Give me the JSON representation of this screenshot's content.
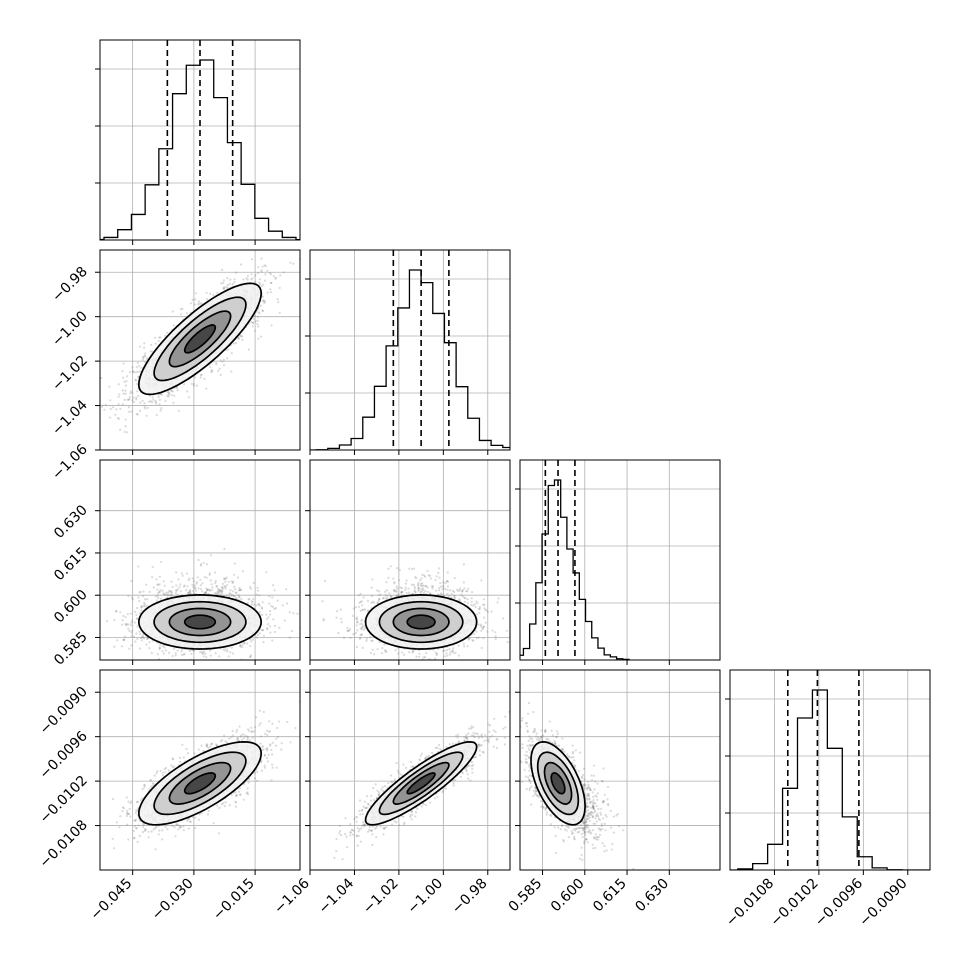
{
  "chart_data": {
    "type": "corner",
    "title": "",
    "grid": true,
    "parameters": [
      {
        "name": "p1",
        "label": "",
        "mean": -0.0285,
        "std": 0.0075,
        "range": [
          -0.053,
          -0.004
        ],
        "ticks": [
          -0.045,
          -0.03,
          -0.015
        ],
        "tick_labels": [
          "−0.045",
          "−0.030",
          "−0.015"
        ],
        "quantiles": [
          -0.0365,
          -0.0285,
          -0.0205
        ]
      },
      {
        "name": "p2",
        "label": "",
        "mean": -1.01,
        "std": 0.0125,
        "range": [
          -1.06,
          -0.97
        ],
        "ticks": [
          -1.06,
          -1.04,
          -1.02,
          -1.0,
          -0.98
        ],
        "tick_labels": [
          "−1.06",
          "−1.04",
          "−1.02",
          "−1.00",
          "−0.98"
        ],
        "quantiles": [
          -1.0225,
          -1.01,
          -0.9975
        ]
      },
      {
        "name": "p3",
        "label": "",
        "mean": 0.5905,
        "std": 0.0048,
        "skew_tail": 0.022,
        "range": [
          0.577,
          0.648
        ],
        "ticks": [
          0.585,
          0.6,
          0.615,
          0.63
        ],
        "tick_labels": [
          "0.585",
          "0.600",
          "0.615",
          "0.630"
        ],
        "quantiles": [
          0.586,
          0.5905,
          0.5965
        ]
      },
      {
        "name": "p4",
        "label": "",
        "mean": -0.01023,
        "std": 0.00028,
        "range": [
          -0.0114,
          -0.0087
        ],
        "ticks": [
          -0.0108,
          -0.0102,
          -0.0096,
          -0.009
        ],
        "tick_labels": [
          "−0.0108",
          "−0.0102",
          "−0.0096",
          "−0.0090"
        ],
        "quantiles": [
          -0.01062,
          -0.01022,
          -0.00966
        ]
      }
    ],
    "correlations": {
      "1-0": 0.82,
      "2-0": 0.0,
      "2-1": 0.0,
      "3-0": 0.72,
      "3-1": 0.88,
      "3-2": -0.55
    },
    "hist_bins": 20,
    "samples_per_2d_panel": 2200,
    "contour_levels_sigma": [
      0.5,
      1.0,
      1.5,
      2.0
    ]
  }
}
